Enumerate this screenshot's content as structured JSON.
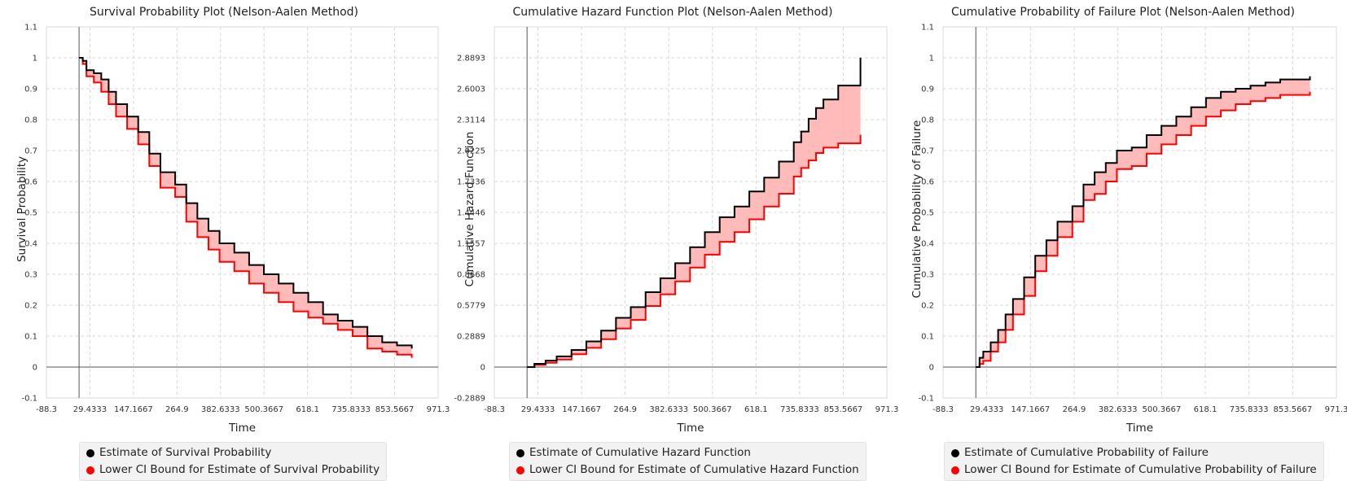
{
  "charts": [
    {
      "chart_data": {
        "type": "line",
        "title": "Survival Probability Plot (Nelson-Aalen Method)",
        "xlabel": "Time",
        "ylabel": "Survival Probability",
        "xlim": [
          -88.3,
          971.3
        ],
        "ylim": [
          -0.1,
          1.1
        ],
        "xticks": [
          "-88.3",
          "29.4333",
          "147.1667",
          "264.9",
          "382.6333",
          "500.3667",
          "618.1",
          "735.8333",
          "853.5667",
          "971.3"
        ],
        "yticks": [
          "-0.1",
          "0",
          "0.1",
          "0.2",
          "0.3",
          "0.4",
          "0.5",
          "0.6",
          "0.7",
          "0.8",
          "0.9",
          "1",
          "1.1"
        ],
        "grid": true,
        "legend_position": "bottom",
        "series": [
          {
            "name": "Estimate of Survival Probability",
            "color": "#000000",
            "x": [
              0,
              10,
              20,
              40,
              60,
              80,
              100,
              130,
              160,
              190,
              220,
              260,
              290,
              320,
              350,
              380,
              420,
              460,
              500,
              540,
              580,
              620,
              660,
              700,
              740,
              780,
              820,
              860,
              900
            ],
            "y": [
              1.0,
              0.99,
              0.96,
              0.95,
              0.93,
              0.89,
              0.85,
              0.81,
              0.76,
              0.69,
              0.63,
              0.59,
              0.53,
              0.48,
              0.44,
              0.4,
              0.37,
              0.33,
              0.3,
              0.27,
              0.24,
              0.21,
              0.17,
              0.15,
              0.13,
              0.1,
              0.08,
              0.07,
              0.06
            ]
          },
          {
            "name": "Lower CI Bound for Estimate of Survival Probability",
            "color": "#ff0000",
            "x": [
              0,
              10,
              20,
              40,
              60,
              80,
              100,
              130,
              160,
              190,
              220,
              260,
              290,
              320,
              350,
              380,
              420,
              460,
              500,
              540,
              580,
              620,
              660,
              700,
              740,
              780,
              820,
              860,
              900
            ],
            "y": [
              1.0,
              0.98,
              0.94,
              0.92,
              0.89,
              0.85,
              0.81,
              0.77,
              0.72,
              0.65,
              0.58,
              0.55,
              0.47,
              0.42,
              0.38,
              0.34,
              0.31,
              0.27,
              0.24,
              0.21,
              0.18,
              0.16,
              0.14,
              0.12,
              0.1,
              0.06,
              0.05,
              0.04,
              0.03
            ]
          }
        ]
      }
    },
    {
      "chart_data": {
        "type": "line",
        "title": "Cumulative Hazard Function Plot (Nelson-Aalen Method)",
        "xlabel": "Time",
        "ylabel": "Cumulative Hazard Function",
        "xlim": [
          -88.3,
          971.3
        ],
        "ylim": [
          -0.2889,
          3.1782
        ],
        "xticks": [
          "-88.3",
          "29.4333",
          "147.1667",
          "264.9",
          "382.6333",
          "500.3667",
          "618.1",
          "735.8333",
          "853.5667",
          "971.3"
        ],
        "yticks": [
          "-0.2889",
          "0",
          "0.2889",
          "0.5779",
          "0.8668",
          "1.1557",
          "1.4446",
          "1.7336",
          "2.0225",
          "2.3114",
          "2.6003",
          "2.8893"
        ],
        "grid": true,
        "legend_position": "bottom",
        "series": [
          {
            "name": "Estimate of Cumulative Hazard Function",
            "color": "#000000",
            "x": [
              0,
              20,
              50,
              80,
              120,
              160,
              200,
              240,
              280,
              320,
              360,
              400,
              440,
              480,
              520,
              560,
              600,
              640,
              680,
              720,
              740,
              760,
              780,
              800,
              840,
              880,
              900
            ],
            "y": [
              0,
              0.03,
              0.06,
              0.1,
              0.16,
              0.24,
              0.34,
              0.46,
              0.56,
              0.7,
              0.83,
              0.97,
              1.12,
              1.26,
              1.4,
              1.5,
              1.64,
              1.77,
              1.92,
              2.1,
              2.2,
              2.32,
              2.42,
              2.5,
              2.63,
              2.63,
              2.89
            ]
          },
          {
            "name": "Lower CI Bound for Estimate of Cumulative Hazard Function",
            "color": "#ff0000",
            "x": [
              0,
              20,
              50,
              80,
              120,
              160,
              200,
              240,
              280,
              320,
              360,
              400,
              440,
              480,
              520,
              560,
              600,
              640,
              680,
              720,
              740,
              760,
              780,
              800,
              840,
              880,
              900
            ],
            "y": [
              0,
              0.02,
              0.04,
              0.07,
              0.12,
              0.18,
              0.26,
              0.36,
              0.44,
              0.57,
              0.68,
              0.8,
              0.93,
              1.05,
              1.17,
              1.26,
              1.38,
              1.5,
              1.62,
              1.78,
              1.86,
              1.93,
              2.0,
              2.05,
              2.09,
              2.09,
              2.17
            ]
          }
        ]
      }
    },
    {
      "chart_data": {
        "type": "line",
        "title": "Cumulative Probability of Failure Plot (Nelson-Aalen Method)",
        "xlabel": "Time",
        "ylabel": "Cumulative Probability of Failure",
        "xlim": [
          -88.3,
          971.3
        ],
        "ylim": [
          -0.1,
          1.1
        ],
        "xticks": [
          "-88.3",
          "29.4333",
          "147.1667",
          "264.9",
          "382.6333",
          "500.3667",
          "618.1",
          "735.8333",
          "853.5667",
          "971.3"
        ],
        "yticks": [
          "-0.1",
          "0",
          "0.1",
          "0.2",
          "0.3",
          "0.4",
          "0.5",
          "0.6",
          "0.7",
          "0.8",
          "0.9",
          "1",
          "1.1"
        ],
        "grid": true,
        "legend_position": "bottom",
        "series": [
          {
            "name": "Estimate of Cumulative Probability of Failure",
            "color": "#000000",
            "x": [
              0,
              10,
              20,
              40,
              60,
              80,
              100,
              130,
              160,
              190,
              220,
              260,
              290,
              320,
              350,
              380,
              420,
              460,
              500,
              540,
              580,
              620,
              660,
              700,
              740,
              780,
              820,
              860,
              900
            ],
            "y": [
              0,
              0.03,
              0.05,
              0.08,
              0.12,
              0.17,
              0.22,
              0.29,
              0.36,
              0.41,
              0.47,
              0.52,
              0.59,
              0.63,
              0.66,
              0.7,
              0.71,
              0.75,
              0.78,
              0.81,
              0.84,
              0.87,
              0.89,
              0.9,
              0.91,
              0.92,
              0.93,
              0.93,
              0.94
            ]
          },
          {
            "name": "Lower CI Bound for Estimate of Cumulative Probability of Failure",
            "color": "#ff0000",
            "x": [
              0,
              10,
              20,
              40,
              60,
              80,
              100,
              130,
              160,
              190,
              220,
              260,
              290,
              320,
              350,
              380,
              420,
              460,
              500,
              540,
              580,
              620,
              660,
              700,
              740,
              780,
              820,
              860,
              900
            ],
            "y": [
              0,
              0.01,
              0.02,
              0.05,
              0.08,
              0.12,
              0.17,
              0.23,
              0.31,
              0.36,
              0.42,
              0.47,
              0.54,
              0.56,
              0.6,
              0.64,
              0.65,
              0.69,
              0.72,
              0.75,
              0.78,
              0.81,
              0.83,
              0.85,
              0.86,
              0.87,
              0.88,
              0.88,
              0.89
            ]
          }
        ]
      }
    }
  ]
}
